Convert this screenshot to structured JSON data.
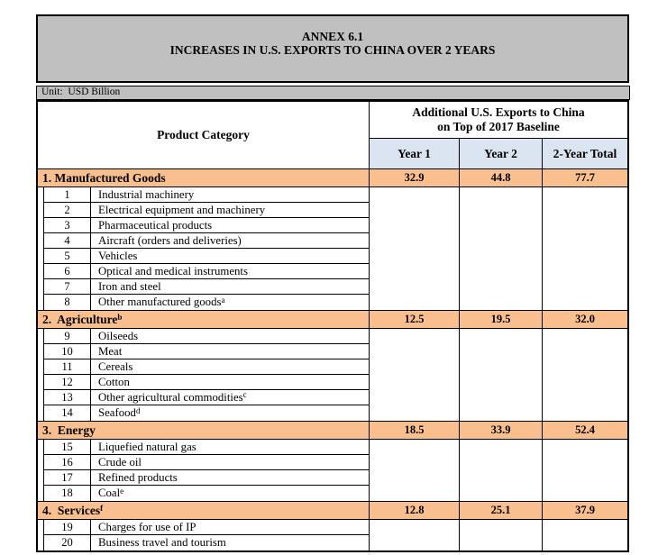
{
  "page": {
    "title_line1": "ANNEX 6.1",
    "title_line2": "INCREASES IN U.S. EXPORTS TO CHINA OVER 2 YEARS",
    "unit_label": "Unit:  USD Billion"
  },
  "table": {
    "product_category_header": "Product Category",
    "value_header_line1": "Additional U.S. Exports to China",
    "value_header_line2": "on Top of 2017 Baseline",
    "year_columns": [
      "Year 1",
      "Year 2",
      "2-Year Total"
    ],
    "sections": [
      {
        "label": "1. Manufactured Goods",
        "sup": "",
        "values": [
          "32.9",
          "44.8",
          "77.7"
        ],
        "items": [
          {
            "num": "1",
            "label": "Industrial machinery",
            "sup": ""
          },
          {
            "num": "2",
            "label": "Electrical equipment and machinery",
            "sup": ""
          },
          {
            "num": "3",
            "label": "Pharmaceutical products",
            "sup": ""
          },
          {
            "num": "4",
            "label": "Aircraft (orders and deliveries)",
            "sup": ""
          },
          {
            "num": "5",
            "label": "Vehicles",
            "sup": ""
          },
          {
            "num": "6",
            "label": "Optical and medical instruments",
            "sup": ""
          },
          {
            "num": "7",
            "label": "Iron and steel",
            "sup": ""
          },
          {
            "num": "8",
            "label": "Other manufactured goods",
            "sup": "a"
          }
        ]
      },
      {
        "label": "2.  Agriculture",
        "sup": "b",
        "values": [
          "12.5",
          "19.5",
          "32.0"
        ],
        "items": [
          {
            "num": "9",
            "label": "Oilseeds",
            "sup": ""
          },
          {
            "num": "10",
            "label": "Meat",
            "sup": ""
          },
          {
            "num": "11",
            "label": "Cereals",
            "sup": ""
          },
          {
            "num": "12",
            "label": "Cotton",
            "sup": ""
          },
          {
            "num": "13",
            "label": "Other agricultural commodities",
            "sup": "c"
          },
          {
            "num": "14",
            "label": "Seafood",
            "sup": "d"
          }
        ]
      },
      {
        "label": "3.  Energy",
        "sup": "",
        "values": [
          "18.5",
          "33.9",
          "52.4"
        ],
        "items": [
          {
            "num": "15",
            "label": "Liquefied natural gas",
            "sup": ""
          },
          {
            "num": "16",
            "label": "Crude oil",
            "sup": ""
          },
          {
            "num": "17",
            "label": "Refined products",
            "sup": ""
          },
          {
            "num": "18",
            "label": "Coal",
            "sup": "e"
          }
        ]
      },
      {
        "label": "4.  Services",
        "sup": "f",
        "values": [
          "12.8",
          "25.1",
          "37.9"
        ],
        "items": [
          {
            "num": "19",
            "label": "Charges for use of IP",
            "sup": ""
          },
          {
            "num": "20",
            "label": "Business travel and tourism",
            "sup": ""
          }
        ]
      }
    ]
  },
  "colors": {
    "header_gray": "#c0c0c0",
    "category_orange": "#fabf8f",
    "year_header_blue": "#dbe5f1",
    "border_black": "#000000"
  }
}
